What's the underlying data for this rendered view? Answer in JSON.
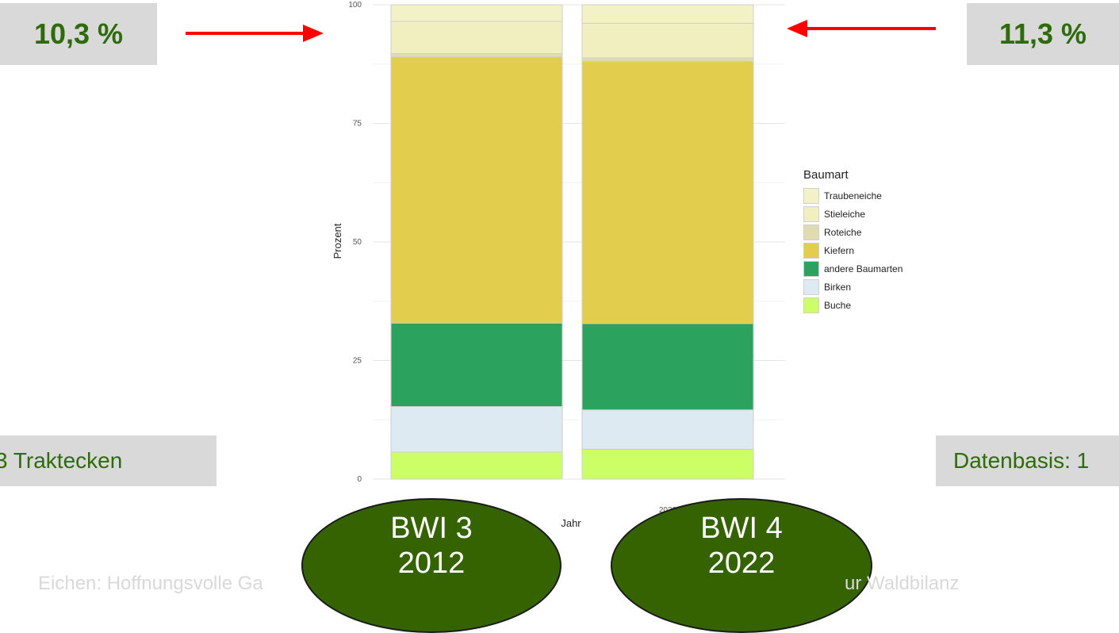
{
  "chart_data": {
    "type": "bar",
    "stacked": true,
    "xlabel": "Jahr",
    "ylabel": "Prozent",
    "ylim": [
      0,
      100
    ],
    "yticks": [
      0,
      25,
      50,
      75,
      100
    ],
    "grid": true,
    "legend_title": "Baumart",
    "legend_position": "right",
    "categories": [
      "2012",
      "2022"
    ],
    "series": [
      {
        "name": "Buche",
        "color": "#ccff66",
        "values": [
          5.7,
          6.3
        ]
      },
      {
        "name": "Birken",
        "color": "#deeaf1",
        "values": [
          9.6,
          8.3
        ]
      },
      {
        "name": "andere Baumarten",
        "color": "#2ca25f",
        "values": [
          17.6,
          18.2
        ]
      },
      {
        "name": "Kiefern",
        "color": "#e3cd4c",
        "values": [
          56.1,
          55.3
        ]
      },
      {
        "name": "Roteiche",
        "color": "#e0dcb0",
        "values": [
          0.7,
          0.7
        ]
      },
      {
        "name": "Stieleiche",
        "color": "#f1efc0",
        "values": [
          6.8,
          7.3
        ]
      },
      {
        "name": "Traubeneiche",
        "color": "#f3f1c6",
        "values": [
          3.5,
          3.9
        ]
      }
    ],
    "legend_order": [
      "Traubeneiche",
      "Stieleiche",
      "Roteiche",
      "Kiefern",
      "andere Baumarten",
      "Birken",
      "Buche"
    ]
  },
  "annotations": {
    "left_callout": "10,3 %",
    "right_callout": "11,3 %",
    "left_info": "3 Traktecken",
    "right_info": "Datenbasis: 1",
    "arrow_color": "#ff0000"
  },
  "bwi_labels": [
    {
      "line1": "BWI 3",
      "line2": "2012"
    },
    {
      "line1": "BWI 4",
      "line2": "2022"
    }
  ],
  "footer": {
    "left_fragment": "Eichen: Hoffnungsvolle Ga",
    "right_fragment": "ur Waldbilanz"
  }
}
